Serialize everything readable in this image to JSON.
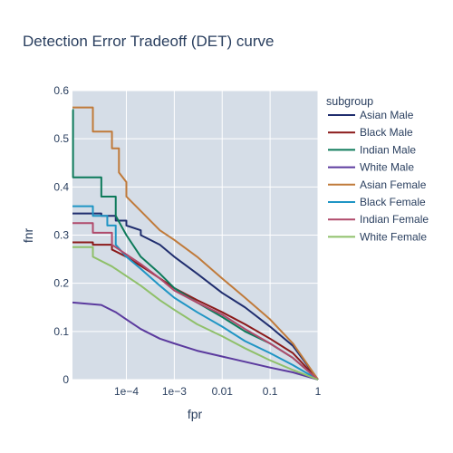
{
  "chart_data": {
    "type": "line",
    "title": "Detection Error Tradeoff (DET) curve",
    "xlabel": "fpr",
    "ylabel": "fnr",
    "xscale": "log",
    "xlim": [
      7.5e-06,
      1
    ],
    "ylim": [
      0,
      0.6
    ],
    "x_ticks": [
      {
        "value": 0.0001,
        "label": "1e−4"
      },
      {
        "value": 0.001,
        "label": "1e−3"
      },
      {
        "value": 0.01,
        "label": "0.01"
      },
      {
        "value": 0.1,
        "label": "0.1"
      },
      {
        "value": 1,
        "label": "1"
      }
    ],
    "y_ticks": [
      {
        "value": 0,
        "label": "0"
      },
      {
        "value": 0.1,
        "label": "0.1"
      },
      {
        "value": 0.2,
        "label": "0.2"
      },
      {
        "value": 0.3,
        "label": "0.3"
      },
      {
        "value": 0.4,
        "label": "0.4"
      },
      {
        "value": 0.5,
        "label": "0.5"
      },
      {
        "value": 0.6,
        "label": "0.6"
      }
    ],
    "grid": true,
    "legend": {
      "title": "subgroup",
      "position": "right"
    },
    "series": [
      {
        "name": "Asian Male",
        "color": "#1f2d6e",
        "x": [
          7.5e-06,
          3e-05,
          3e-05,
          6e-05,
          6e-05,
          0.0001,
          0.0001,
          0.0002,
          0.0002,
          0.0005,
          0.001,
          0.003,
          0.01,
          0.03,
          0.1,
          0.3,
          1
        ],
        "y": [
          0.345,
          0.345,
          0.34,
          0.34,
          0.33,
          0.33,
          0.32,
          0.31,
          0.3,
          0.28,
          0.255,
          0.22,
          0.18,
          0.15,
          0.11,
          0.07,
          0
        ]
      },
      {
        "name": "Black Male",
        "color": "#8b1a1a",
        "x": [
          7.5e-06,
          2e-05,
          2e-05,
          5e-05,
          5e-05,
          0.0001,
          0.0003,
          0.001,
          0.003,
          0.01,
          0.03,
          0.1,
          0.3,
          1
        ],
        "y": [
          0.285,
          0.285,
          0.28,
          0.28,
          0.27,
          0.255,
          0.225,
          0.19,
          0.165,
          0.14,
          0.115,
          0.085,
          0.055,
          0
        ]
      },
      {
        "name": "Indian Male",
        "color": "#0d7a5a",
        "x": [
          7.5e-06,
          7.7e-06,
          7.7e-06,
          3e-05,
          3e-05,
          6e-05,
          6e-05,
          0.0001,
          0.0002,
          0.0005,
          0.001,
          0.003,
          0.01,
          0.03,
          0.1,
          0.3,
          1
        ],
        "y": [
          0.56,
          0.56,
          0.42,
          0.42,
          0.38,
          0.38,
          0.34,
          0.3,
          0.255,
          0.22,
          0.19,
          0.16,
          0.13,
          0.1,
          0.075,
          0.045,
          0
        ]
      },
      {
        "name": "White Male",
        "color": "#5b3a9e",
        "x": [
          7.5e-06,
          3e-05,
          6e-05,
          0.0001,
          0.0002,
          0.0005,
          0.001,
          0.003,
          0.01,
          0.03,
          0.1,
          0.3,
          1
        ],
        "y": [
          0.16,
          0.155,
          0.14,
          0.125,
          0.105,
          0.085,
          0.075,
          0.06,
          0.048,
          0.037,
          0.025,
          0.015,
          0
        ]
      },
      {
        "name": "Asian Female",
        "color": "#c07a3a",
        "x": [
          7.5e-06,
          2e-05,
          2e-05,
          5e-05,
          5e-05,
          7e-05,
          7e-05,
          0.0001,
          0.0001,
          0.0002,
          0.0005,
          0.001,
          0.003,
          0.01,
          0.03,
          0.1,
          0.3,
          1
        ],
        "y": [
          0.565,
          0.565,
          0.515,
          0.515,
          0.48,
          0.48,
          0.43,
          0.41,
          0.38,
          0.35,
          0.31,
          0.29,
          0.255,
          0.21,
          0.17,
          0.125,
          0.075,
          0
        ]
      },
      {
        "name": "Black Female",
        "color": "#1f95c4",
        "x": [
          7.5e-06,
          2e-05,
          2e-05,
          4e-05,
          4e-05,
          6e-05,
          6e-05,
          0.0001,
          0.0002,
          0.0005,
          0.001,
          0.003,
          0.01,
          0.03,
          0.1,
          0.3,
          1
        ],
        "y": [
          0.36,
          0.36,
          0.34,
          0.34,
          0.32,
          0.32,
          0.28,
          0.255,
          0.23,
          0.195,
          0.17,
          0.14,
          0.11,
          0.08,
          0.055,
          0.03,
          0
        ]
      },
      {
        "name": "Indian Female",
        "color": "#b04a6b",
        "x": [
          7.5e-06,
          2e-05,
          2e-05,
          5e-05,
          5e-05,
          0.0001,
          0.0002,
          0.0005,
          0.001,
          0.003,
          0.01,
          0.03,
          0.1,
          0.3,
          1
        ],
        "y": [
          0.325,
          0.325,
          0.305,
          0.305,
          0.28,
          0.26,
          0.24,
          0.21,
          0.185,
          0.16,
          0.135,
          0.105,
          0.075,
          0.045,
          0
        ]
      },
      {
        "name": "White Female",
        "color": "#8fc06a",
        "x": [
          7.5e-06,
          2e-05,
          2e-05,
          5e-05,
          0.0001,
          0.0002,
          0.0005,
          0.001,
          0.003,
          0.01,
          0.03,
          0.1,
          0.3,
          1
        ],
        "y": [
          0.275,
          0.275,
          0.255,
          0.235,
          0.215,
          0.195,
          0.165,
          0.145,
          0.115,
          0.09,
          0.065,
          0.04,
          0.02,
          0
        ]
      }
    ]
  }
}
